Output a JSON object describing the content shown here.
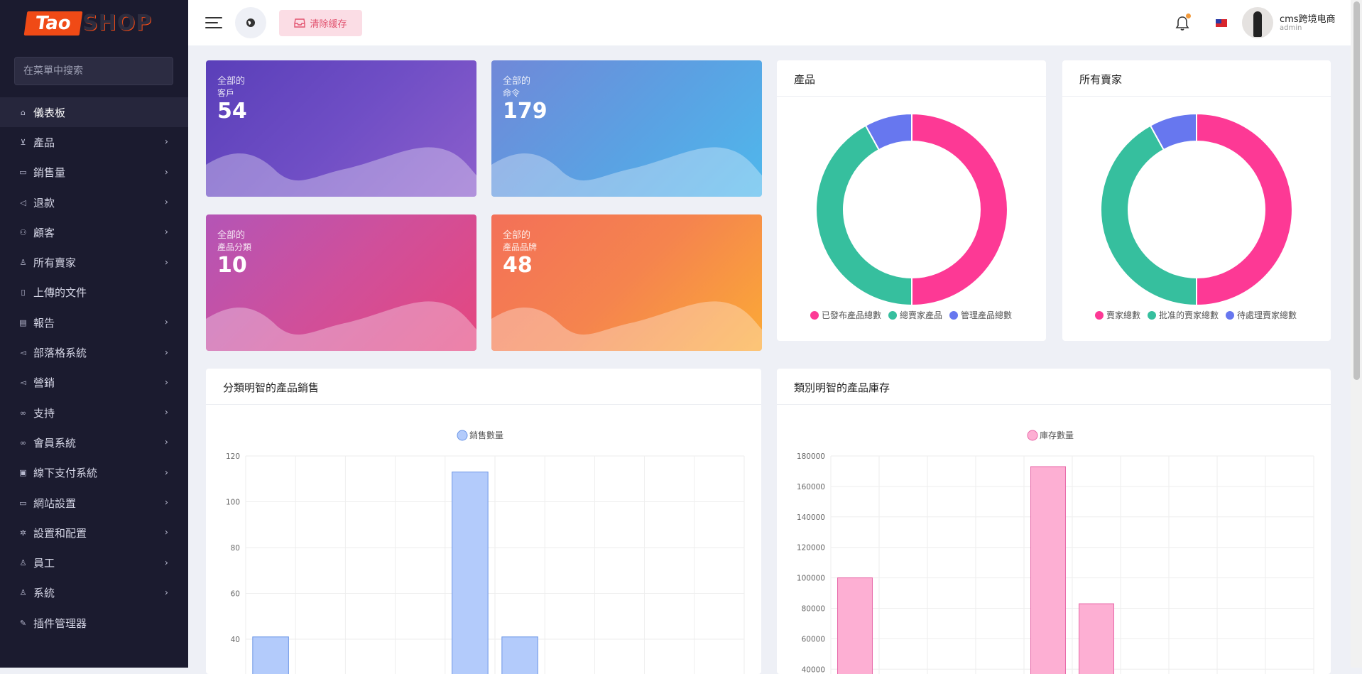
{
  "brand": {
    "logo_left": "Tao",
    "logo_right": "SHOP"
  },
  "sidebar": {
    "search_placeholder": "在菜單中搜索",
    "items": [
      {
        "label": "儀表板",
        "icon": "home-icon",
        "chevron": false,
        "active": true
      },
      {
        "label": "產品",
        "icon": "cart-icon",
        "chevron": true
      },
      {
        "label": "銷售量",
        "icon": "money-icon",
        "chevron": true
      },
      {
        "label": "退款",
        "icon": "refund-icon",
        "chevron": true
      },
      {
        "label": "顧客",
        "icon": "users-icon",
        "chevron": true
      },
      {
        "label": "所有賣家",
        "icon": "user-icon",
        "chevron": true
      },
      {
        "label": "上傳的文件",
        "icon": "file-icon",
        "chevron": false
      },
      {
        "label": "報告",
        "icon": "report-icon",
        "chevron": true
      },
      {
        "label": "部落格系統",
        "icon": "megaphone-icon",
        "chevron": true
      },
      {
        "label": "營銷",
        "icon": "megaphone-icon",
        "chevron": true
      },
      {
        "label": "支持",
        "icon": "link-icon",
        "chevron": true
      },
      {
        "label": "會員系統",
        "icon": "link-icon",
        "chevron": true
      },
      {
        "label": "線下支付系統",
        "icon": "card-icon",
        "chevron": true
      },
      {
        "label": "網站設置",
        "icon": "monitor-icon",
        "chevron": true
      },
      {
        "label": "設置和配置",
        "icon": "gear-icon",
        "chevron": true
      },
      {
        "label": "員工",
        "icon": "user-icon",
        "chevron": true
      },
      {
        "label": "系統",
        "icon": "user-icon",
        "chevron": true
      },
      {
        "label": "插件管理器",
        "icon": "wrench-icon",
        "chevron": false
      }
    ]
  },
  "topbar": {
    "clear_cache": "清除緩存",
    "user_name": "cms跨境电商",
    "user_role": "admin"
  },
  "stats": [
    {
      "line1": "全部的",
      "line2": "客戶",
      "value": "54"
    },
    {
      "line1": "全部的",
      "line2": "命令",
      "value": "179"
    },
    {
      "line1": "全部的",
      "line2": "產品分類",
      "value": "10"
    },
    {
      "line1": "全部的",
      "line2": "產品品牌",
      "value": "48"
    }
  ],
  "colors": {
    "pink": "#fd3995",
    "teal": "#36bf9e",
    "blue": "#6777ef",
    "bar_blue_fill": "#b3cbfb",
    "bar_blue_stroke": "#6b95e6",
    "bar_pink_fill": "#fdafd3",
    "bar_pink_stroke": "#e868a8"
  },
  "panels": {
    "products": {
      "title": "產品"
    },
    "sellers": {
      "title": "所有賣家"
    },
    "sales": {
      "title": "分類明智的產品銷售"
    },
    "stock": {
      "title": "類別明智的產品庫存"
    }
  },
  "chart_data": [
    {
      "type": "pie",
      "title": "產品",
      "labels": [
        "已發布產品總數",
        "總賣家產品",
        "管理產品總數"
      ],
      "values": [
        50,
        42,
        8
      ]
    },
    {
      "type": "pie",
      "title": "所有賣家",
      "labels": [
        "賣家總數",
        "批准的賣家總數",
        "待處理賣家總數"
      ],
      "values": [
        50,
        42,
        8
      ]
    },
    {
      "type": "bar",
      "title": "分類明智的產品銷售",
      "series": [
        {
          "name": "銷售數量",
          "values": [
            41,
            0,
            0,
            0,
            113,
            41,
            0,
            0,
            0,
            0
          ]
        }
      ],
      "yticks": [
        40,
        60,
        80,
        100,
        120
      ],
      "ylim_visible": [
        30,
        120
      ]
    },
    {
      "type": "bar",
      "title": "類別明智的產品庫存",
      "series": [
        {
          "name": "庫存數量",
          "values": [
            100000,
            0,
            0,
            0,
            173000,
            83000,
            0,
            0,
            0,
            0
          ]
        }
      ],
      "yticks": [
        40000,
        60000,
        80000,
        100000,
        120000,
        140000,
        160000,
        180000
      ],
      "ylim_visible": [
        30000,
        180000
      ]
    }
  ]
}
